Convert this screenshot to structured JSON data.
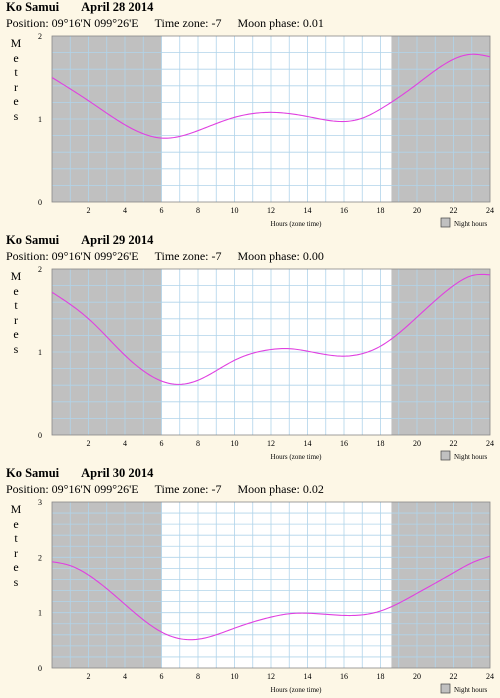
{
  "charts": [
    {
      "location": "Ko Samui",
      "date": "April 28 2014",
      "position_label": "Position: 09°16'N 099°26'E",
      "timezone_label": "Time zone: -7",
      "moon_label": "Moon phase: 0.01",
      "ylabel_letters": [
        "M",
        "e",
        "t",
        "r",
        "e",
        "s"
      ],
      "xlabel": "Hours (zone time)",
      "legend": "Night hours"
    },
    {
      "location": "Ko Samui",
      "date": "April 29 2014",
      "position_label": "Position: 09°16'N 099°26'E",
      "timezone_label": "Time zone: -7",
      "moon_label": "Moon phase: 0.00",
      "ylabel_letters": [
        "M",
        "e",
        "t",
        "r",
        "e",
        "s"
      ],
      "xlabel": "Hours (zone time)",
      "legend": "Night hours"
    },
    {
      "location": "Ko Samui",
      "date": "April 30 2014",
      "position_label": "Position: 09°16'N 099°26'E",
      "timezone_label": "Time zone: -7",
      "moon_label": "Moon phase: 0.02",
      "ylabel_letters": [
        "M",
        "e",
        "t",
        "r",
        "e",
        "s"
      ],
      "xlabel": "Hours (zone time)",
      "legend": "Night hours"
    }
  ],
  "chart_data": [
    {
      "type": "line",
      "title": "Ko Samui April 28 2014",
      "xlabel": "Hours (zone time)",
      "ylabel": "Metres",
      "xlim": [
        0,
        24
      ],
      "ylim": [
        0,
        2
      ],
      "xticks": [
        2,
        4,
        6,
        8,
        10,
        12,
        14,
        16,
        18,
        20,
        22,
        24
      ],
      "yticks": [
        0,
        1,
        2
      ],
      "night_hours": [
        [
          0,
          6.0
        ],
        [
          18.6,
          24
        ]
      ],
      "grid": true,
      "legend": "bottom-right",
      "colors": {
        "curve": "#e040e0",
        "night": "#c0c0c0",
        "grid": "#b0d4ea",
        "background": "#fdf7e6"
      },
      "x": [
        0,
        2,
        4,
        6,
        7,
        8,
        10,
        12,
        14,
        16,
        17,
        18,
        20,
        22,
        23,
        24
      ],
      "y": [
        1.5,
        1.22,
        0.93,
        0.77,
        0.79,
        0.86,
        1.02,
        1.08,
        1.03,
        0.97,
        1.01,
        1.12,
        1.42,
        1.72,
        1.78,
        1.75
      ]
    },
    {
      "type": "line",
      "title": "Ko Samui April 29 2014",
      "xlabel": "Hours (zone time)",
      "ylabel": "Metres",
      "xlim": [
        0,
        24
      ],
      "ylim": [
        0,
        2
      ],
      "xticks": [
        2,
        4,
        6,
        8,
        10,
        12,
        14,
        16,
        18,
        20,
        22,
        24
      ],
      "yticks": [
        0,
        1,
        2
      ],
      "night_hours": [
        [
          0,
          6.0
        ],
        [
          18.6,
          24
        ]
      ],
      "grid": true,
      "legend": "bottom-right",
      "colors": {
        "curve": "#e040e0",
        "night": "#c0c0c0",
        "grid": "#b0d4ea",
        "background": "#fdf7e6"
      },
      "x": [
        0,
        2,
        4,
        6,
        7,
        8,
        10,
        12,
        13,
        14,
        16,
        17,
        18,
        20,
        22,
        23,
        24
      ],
      "y": [
        1.72,
        1.4,
        0.96,
        0.65,
        0.61,
        0.66,
        0.9,
        1.03,
        1.04,
        1.01,
        0.95,
        0.98,
        1.07,
        1.42,
        1.8,
        1.92,
        1.93
      ]
    },
    {
      "type": "line",
      "title": "Ko Samui April 30 2014",
      "xlabel": "Hours (zone time)",
      "ylabel": "Metres",
      "xlim": [
        0,
        24
      ],
      "ylim": [
        0,
        3
      ],
      "xticks": [
        2,
        4,
        6,
        8,
        10,
        12,
        14,
        16,
        18,
        20,
        22,
        24
      ],
      "yticks": [
        0,
        1,
        2,
        3
      ],
      "night_hours": [
        [
          0,
          6.0
        ],
        [
          18.6,
          24
        ]
      ],
      "grid": true,
      "legend": "bottom-right",
      "colors": {
        "curve": "#e040e0",
        "night": "#c0c0c0",
        "grid": "#b0d4ea",
        "background": "#fdf7e6"
      },
      "x": [
        0,
        1,
        2,
        4,
        6,
        7,
        8,
        10,
        12,
        13,
        14,
        16,
        17,
        18,
        20,
        22,
        23,
        24
      ],
      "y": [
        1.92,
        1.85,
        1.68,
        1.15,
        0.65,
        0.53,
        0.52,
        0.72,
        0.92,
        0.98,
        0.99,
        0.95,
        0.96,
        1.03,
        1.35,
        1.72,
        1.9,
        2.02
      ]
    }
  ]
}
